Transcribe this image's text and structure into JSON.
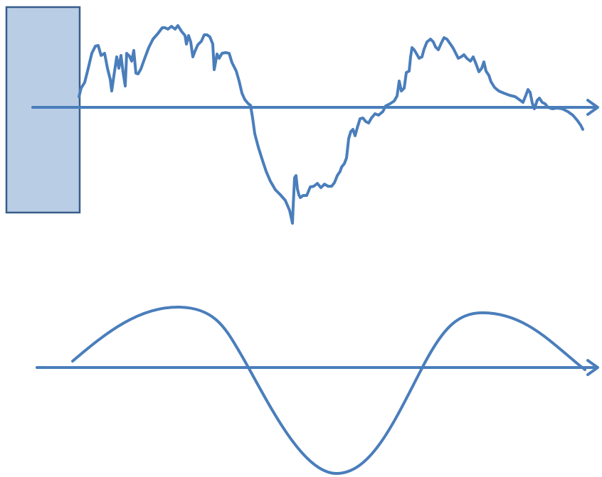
{
  "diagram": {
    "colors": {
      "line": "#4a7ebb",
      "block_fill": "#b9cde5",
      "block_stroke": "#385d8a",
      "background": "#ffffff"
    },
    "top_panel": {
      "shape": "rectangle-block",
      "axis": "horizontal-arrow",
      "signal": "irregular-waveform"
    },
    "bottom_panel": {
      "axis": "horizontal-arrow",
      "signal": "sine-wave"
    }
  }
}
